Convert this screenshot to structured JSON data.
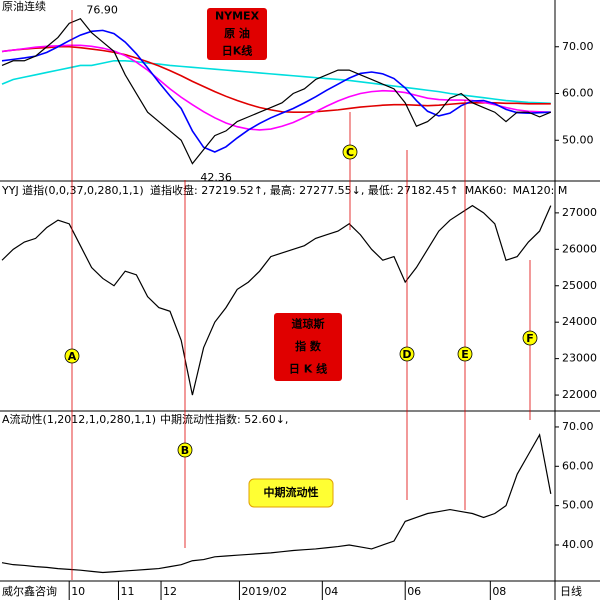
{
  "chart_data": [
    {
      "type": "line",
      "title": "原油连续",
      "box_text": [
        "NYMEX",
        "原 油",
        "日K线"
      ],
      "annotations": [
        "76.90",
        "42.36"
      ],
      "ylim": [
        41.5,
        80
      ],
      "yticks": [
        {
          "value": 50,
          "label": "50.00"
        },
        {
          "value": 60,
          "label": "60.00"
        },
        {
          "value": 70,
          "label": "70.00"
        }
      ],
      "series": [
        {
          "color": "#00dede",
          "values": [
            62,
            63,
            63.5,
            64,
            64.5,
            65,
            65.5,
            66,
            66,
            66.5,
            67,
            67,
            66.8,
            66.5,
            66.3,
            66,
            65.8,
            65.6,
            65.4,
            65.2,
            65,
            64.8,
            64.6,
            64.4,
            64.2,
            64,
            63.8,
            63.6,
            63.4,
            63.2,
            63,
            62.8,
            62.5,
            62.2,
            61.9,
            61.6,
            61.3,
            61,
            60.7,
            60.4,
            60,
            59.7,
            59.4,
            59.1,
            58.8,
            58.5,
            58.3,
            58.1,
            58,
            57.9
          ]
        },
        {
          "color": "#e00000",
          "values": [
            69,
            69.3,
            69.5,
            69.7,
            69.8,
            70,
            70,
            69.8,
            69.5,
            69.2,
            68.8,
            68.3,
            67.6,
            66.8,
            65.9,
            64.9,
            63.8,
            62.6,
            61.5,
            60.4,
            59.4,
            58.5,
            57.7,
            57,
            56.5,
            56.1,
            56,
            56,
            56.1,
            56.3,
            56.5,
            56.8,
            57.1,
            57.3,
            57.5,
            57.6,
            57.6,
            57.5,
            57.4,
            57.5,
            57.7,
            57.9,
            58,
            58,
            58,
            57.9,
            57.9,
            57.8,
            57.8,
            57.8
          ]
        },
        {
          "color": "#ff00ff",
          "values": [
            69,
            69.3,
            69.6,
            69.9,
            70.1,
            70.2,
            70.3,
            70.3,
            70.1,
            69.7,
            69.1,
            68.1,
            66.7,
            65,
            63,
            61,
            59.2,
            57.6,
            56.1,
            54.8,
            53.7,
            52.9,
            52.4,
            52.2,
            52.4,
            53,
            53.8,
            54.9,
            56.1,
            57.3,
            58.4,
            59.3,
            60,
            60.4,
            60.6,
            60.5,
            60.2,
            59.6,
            59,
            58.7,
            58.6,
            58.6,
            58.5,
            58.1,
            57.6,
            57,
            56.5,
            56.2,
            56.1,
            56
          ]
        },
        {
          "color": "#0000ff",
          "values": [
            67,
            67.3,
            67.6,
            68,
            68.8,
            70,
            71.3,
            72.5,
            73.3,
            73.5,
            72.8,
            71,
            68.5,
            65.5,
            62.4,
            59.5,
            56.8,
            52,
            48.5,
            47.5,
            48.6,
            50.5,
            52.2,
            53.6,
            54.8,
            55.8,
            56.8,
            58,
            59.3,
            60.7,
            62,
            63.3,
            64.3,
            64.6,
            64.2,
            63.2,
            61.2,
            58.5,
            56.2,
            55.2,
            55.8,
            57.4,
            58.4,
            58.5,
            57.8,
            56.6,
            55.9,
            55.8,
            55.9,
            56
          ]
        },
        {
          "color": "#000000",
          "values": [
            66,
            67,
            67,
            68,
            70,
            72,
            75,
            76,
            73,
            71,
            69,
            64,
            60,
            56,
            54,
            52,
            50,
            45,
            48,
            51,
            52,
            54,
            55,
            56,
            57,
            58,
            60,
            61,
            63,
            64,
            65,
            65,
            64,
            63,
            62,
            61,
            58,
            53,
            54,
            56,
            59,
            60,
            58,
            57,
            56,
            54,
            56,
            56,
            55,
            56
          ]
        }
      ]
    },
    {
      "type": "line",
      "title": "YYJ 道指(0,0,37,0,280,1,1)",
      "header": [
        "道指收盘: 27219.52",
        "↑",
        ", 最高: 27277.55",
        "↓",
        ", 最低: 27182.45",
        "↑",
        "MAK60:",
        "MA120: M"
      ],
      "box_text": [
        "道琼斯",
        "指  数",
        "日 K 线"
      ],
      "ylim": [
        21590,
        27820
      ],
      "yticks": [
        22000,
        23000,
        24000,
        25000,
        26000,
        27000
      ],
      "series": [
        {
          "color": "#000000",
          "values": [
            25700,
            26000,
            26200,
            26300,
            26600,
            26800,
            26700,
            26100,
            25500,
            25200,
            25000,
            25400,
            25300,
            24700,
            24400,
            24300,
            23500,
            22000,
            23300,
            24000,
            24400,
            24900,
            25100,
            25400,
            25800,
            25900,
            26000,
            26100,
            26300,
            26400,
            26500,
            26700,
            26400,
            26000,
            25700,
            25800,
            25100,
            25500,
            26000,
            26500,
            26800,
            27000,
            27200,
            27000,
            26700,
            25700,
            25800,
            26200,
            26500,
            27200
          ]
        }
      ]
    },
    {
      "type": "line",
      "title": "A流动性(1,2012,1,0,280,1,1)",
      "header": [
        "中期流动性指数: 52.60",
        "↓",
        ","
      ],
      "box_text": [
        "中期流动性"
      ],
      "ylim": [
        31.1,
        73.8
      ],
      "yticks": [
        {
          "value": 40,
          "label": "40.00"
        },
        {
          "value": 50,
          "label": "50.00"
        },
        {
          "value": 60,
          "label": "60.00"
        },
        {
          "value": 70,
          "label": "70.00"
        }
      ],
      "xticks": [
        {
          "value": 6,
          "label": "10"
        },
        {
          "value": 10.4,
          "label": "11"
        },
        {
          "value": 14.2,
          "label": "12"
        },
        {
          "value": 21.2,
          "label": "2019/02"
        },
        {
          "value": 28.6,
          "label": "04"
        },
        {
          "value": 36,
          "label": "06"
        },
        {
          "value": 43.6,
          "label": "08"
        }
      ],
      "series": [
        {
          "color": "#000000",
          "values": [
            35.5,
            35,
            34.8,
            34.5,
            34.3,
            34,
            33.8,
            33.6,
            33.3,
            33,
            33.2,
            33.4,
            33.6,
            33.8,
            34,
            34.5,
            35,
            36,
            36.3,
            37,
            37.2,
            37.4,
            37.6,
            37.8,
            38,
            38.3,
            38.6,
            38.8,
            39,
            39.3,
            39.6,
            40,
            39.5,
            39,
            40,
            41,
            46,
            47,
            48,
            48.5,
            49,
            48.5,
            48,
            47,
            48,
            50,
            58,
            63,
            68,
            53
          ]
        }
      ]
    }
  ],
  "markers": [
    "A",
    "B",
    "C",
    "D",
    "E",
    "F"
  ],
  "brand": "威尔鑫咨询",
  "period": "日线"
}
